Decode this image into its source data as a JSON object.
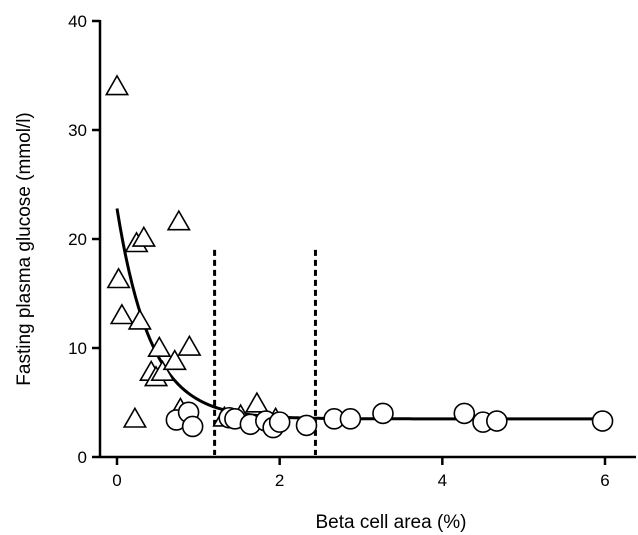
{
  "chart_data": {
    "type": "scatter",
    "title": "",
    "xlabel": "Beta cell area (%)",
    "ylabel": "Fasting plasma glucose (mmol/l)",
    "xlim": [
      0,
      6
    ],
    "ylim": [
      0,
      40
    ],
    "x_ticks": [
      0,
      2,
      4,
      6
    ],
    "y_ticks": [
      0,
      10,
      20,
      30,
      40
    ],
    "grid": false,
    "legend": "none",
    "series": [
      {
        "marker": "triangle",
        "points": [
          [
            0.0,
            34.0
          ],
          [
            0.02,
            16.3
          ],
          [
            0.06,
            13.0
          ],
          [
            0.22,
            3.5
          ],
          [
            0.24,
            19.6
          ],
          [
            0.28,
            12.5
          ],
          [
            0.33,
            20.1
          ],
          [
            0.42,
            7.8
          ],
          [
            0.48,
            7.3
          ],
          [
            0.52,
            10.0
          ],
          [
            0.56,
            7.8
          ],
          [
            0.71,
            8.8
          ],
          [
            0.76,
            21.6
          ],
          [
            0.78,
            4.4
          ],
          [
            0.89,
            10.1
          ],
          [
            1.32,
            3.6
          ],
          [
            1.52,
            3.8
          ],
          [
            1.72,
            4.9
          ],
          [
            1.95,
            3.5
          ]
        ]
      },
      {
        "marker": "circle",
        "points": [
          [
            0.73,
            3.4
          ],
          [
            0.88,
            4.1
          ],
          [
            0.93,
            2.8
          ],
          [
            1.38,
            3.6
          ],
          [
            1.45,
            3.5
          ],
          [
            1.64,
            3.0
          ],
          [
            1.83,
            3.3
          ],
          [
            1.92,
            2.7
          ],
          [
            2.0,
            3.2
          ],
          [
            2.33,
            2.9
          ],
          [
            2.67,
            3.5
          ],
          [
            2.87,
            3.5
          ],
          [
            3.27,
            4.0
          ],
          [
            4.27,
            4.0
          ],
          [
            4.5,
            3.2
          ],
          [
            4.67,
            3.3
          ],
          [
            5.97,
            3.3
          ]
        ]
      }
    ],
    "fit_curve": {
      "model": "exponential decay",
      "x_range": [
        0.0,
        6.0
      ],
      "asymptote": 3.5,
      "amplitude": 19.3,
      "rate": 2.4
    },
    "vertical_lines": [
      1.2,
      2.44
    ],
    "vertical_line_top": 19.0,
    "colors": {
      "line": "#000000",
      "marker_fill": "#ffffff",
      "background": "#ffffff"
    }
  }
}
